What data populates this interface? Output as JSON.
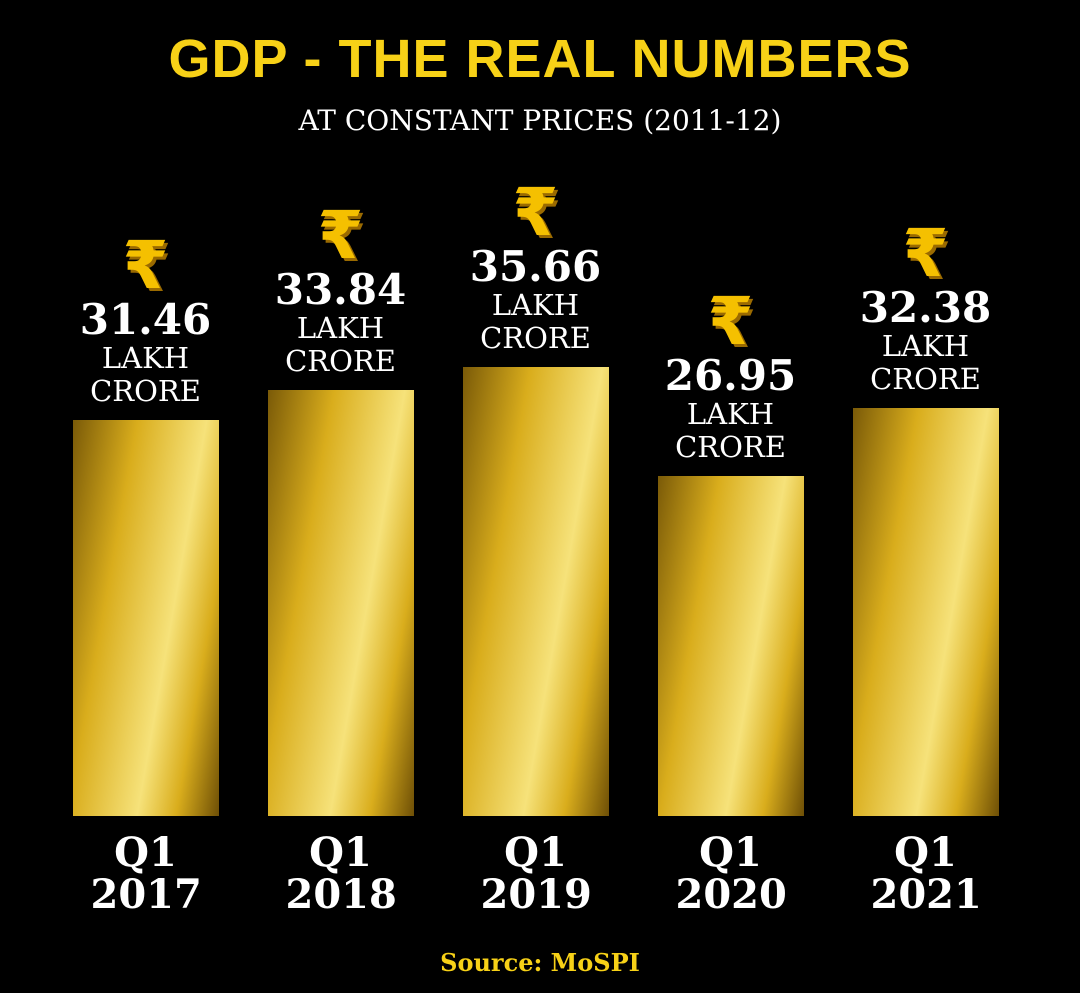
{
  "chart_data": {
    "type": "bar",
    "title": "GDP - THE REAL NUMBERS",
    "subtitle": "AT CONSTANT PRICES (2011-12)",
    "categories": [
      "Q1 2017",
      "Q1 2018",
      "Q1 2019",
      "Q1 2020",
      "Q1 2021"
    ],
    "values": [
      31.46,
      33.84,
      35.66,
      26.95,
      32.38
    ],
    "value_unit": "LAKH CRORE",
    "currency_symbol": "₹",
    "color": "#d9ad1c",
    "ylim": [
      0,
      60
    ],
    "source": "Source: MoSPI"
  }
}
